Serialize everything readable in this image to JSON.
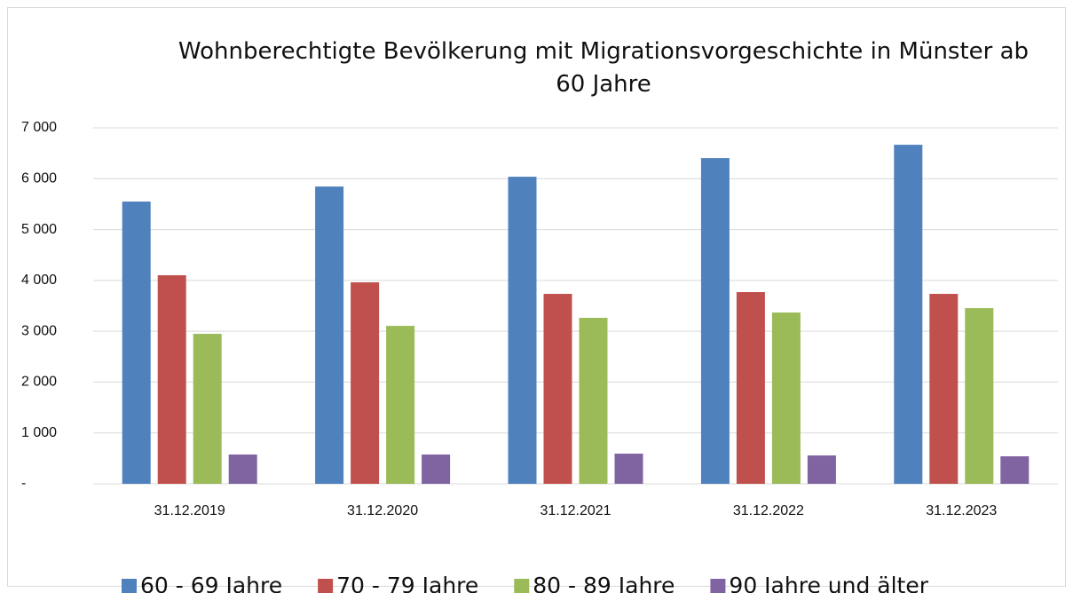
{
  "chart_data": {
    "type": "bar",
    "title": "Wohnberechtigte Bevölkerung mit Migrationsvorgeschichte in Münster ab 60 Jahre",
    "categories": [
      "31.12.2019",
      "31.12.2020",
      "31.12.2021",
      "31.12.2022",
      "31.12.2023"
    ],
    "series": [
      {
        "name": "60 - 69 Jahre",
        "color": "#4f81bd",
        "values": [
          5550,
          5846,
          6038,
          6405,
          6667
        ]
      },
      {
        "name": "70 - 79 Jahre",
        "color": "#c0504d",
        "values": [
          4101,
          3962,
          3735,
          3770,
          3735
        ]
      },
      {
        "name": "80 - 89 Jahre",
        "color": "#9bbb59",
        "values": [
          2949,
          3106,
          3264,
          3368,
          3455
        ]
      },
      {
        "name": "90 Jahre und älter",
        "color": "#8064a2",
        "values": [
          576,
          576,
          593,
          558,
          541
        ]
      }
    ],
    "ylim": [
      0,
      7000
    ],
    "yticks": [
      {
        "value": 0,
        "label": "-"
      },
      {
        "value": 1000,
        "label": "1 000"
      },
      {
        "value": 2000,
        "label": "2 000"
      },
      {
        "value": 3000,
        "label": "3 000"
      },
      {
        "value": 4000,
        "label": "4 000"
      },
      {
        "value": 5000,
        "label": "5 000"
      },
      {
        "value": 6000,
        "label": "6 000"
      },
      {
        "value": 7000,
        "label": "7 000"
      }
    ],
    "grid": true,
    "legend": "bottom"
  }
}
